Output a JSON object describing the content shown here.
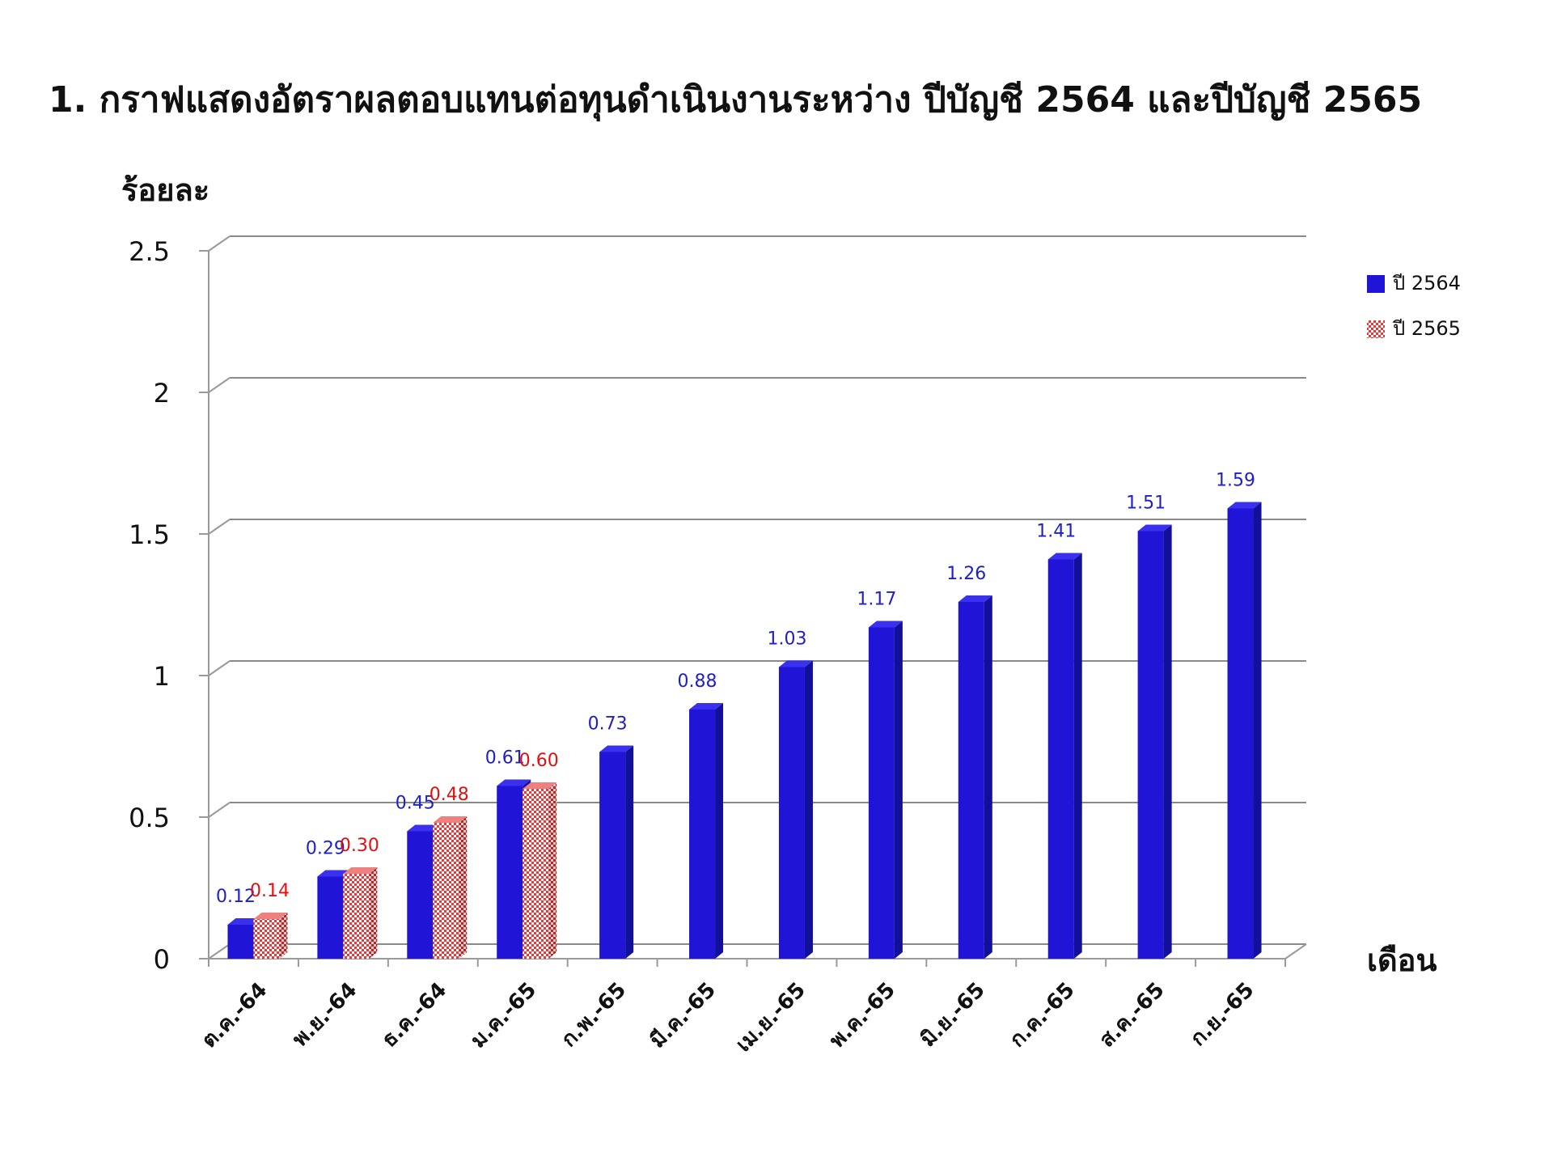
{
  "title": "1. กราฟแสดงอัตราผลตอบแทนต่อทุนดำเนินงานระหว่าง ปีบัญชี 2564 และปีบัญชี 2565",
  "chart_data": {
    "type": "bar",
    "title": "1. กราฟแสดงอัตราผลตอบแทนต่อทุนดำเนินงานระหว่าง ปีบัญชี 2564 และปีบัญชี 2565",
    "ylabel": "ร้อยละ",
    "xlabel": "เดือน",
    "ylim": [
      0,
      2.5
    ],
    "yticks": [
      "0",
      "0.5",
      "1",
      "1.5",
      "2",
      "2.5"
    ],
    "categories": [
      "ต.ค.-64",
      "พ.ย.-64",
      "ธ.ค.-64",
      "ม.ค.-65",
      "ก.พ.-65",
      "มี.ค.-65",
      "เม.ย.-65",
      "พ.ค.-65",
      "มิ.ย.-65",
      "ก.ค.-65",
      "ส.ค.-65",
      "ก.ย.-65"
    ],
    "series": [
      {
        "name": "ปี 2564",
        "color": "#2014d6",
        "values": [
          0.12,
          0.29,
          0.45,
          0.61,
          0.73,
          0.88,
          1.03,
          1.17,
          1.26,
          1.41,
          1.51,
          1.59
        ],
        "labels": [
          "0.12",
          "0.29",
          "0.45",
          "0.61",
          "0.73",
          "0.88",
          "1.03",
          "1.17",
          "1.26",
          "1.41",
          "1.51",
          "1.59"
        ]
      },
      {
        "name": "ปี 2565",
        "color": "#e83a3a",
        "values": [
          0.14,
          0.3,
          0.48,
          0.6,
          null,
          null,
          null,
          null,
          null,
          null,
          null,
          null
        ],
        "labels": [
          "0.14",
          "0.30",
          "0.48",
          "0.60",
          "",
          "",
          "",
          "",
          "",
          "",
          "",
          ""
        ]
      }
    ],
    "grid": true,
    "legend": "right"
  }
}
